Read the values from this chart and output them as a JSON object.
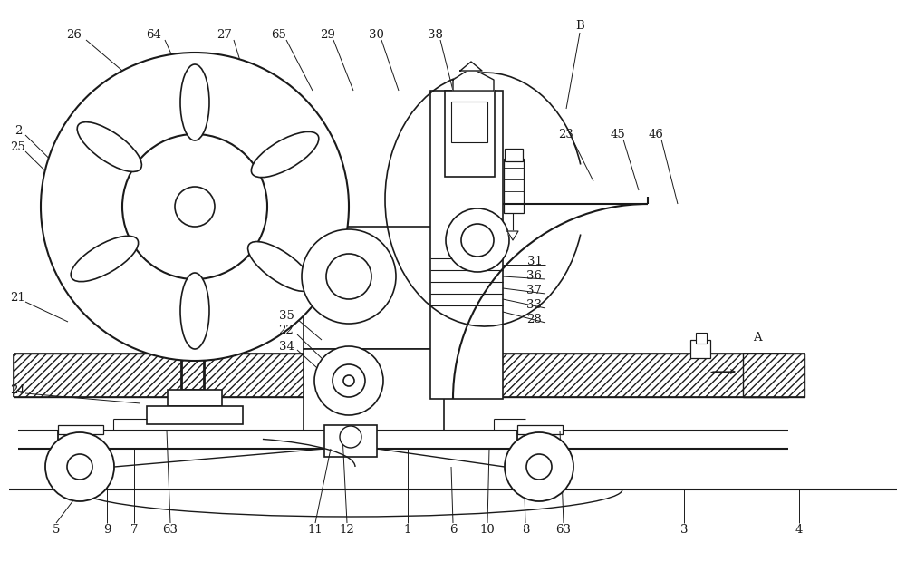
{
  "bg_color": "#ffffff",
  "line_color": "#1a1a1a",
  "figsize": [
    10.0,
    6.2
  ],
  "dpi": 100
}
